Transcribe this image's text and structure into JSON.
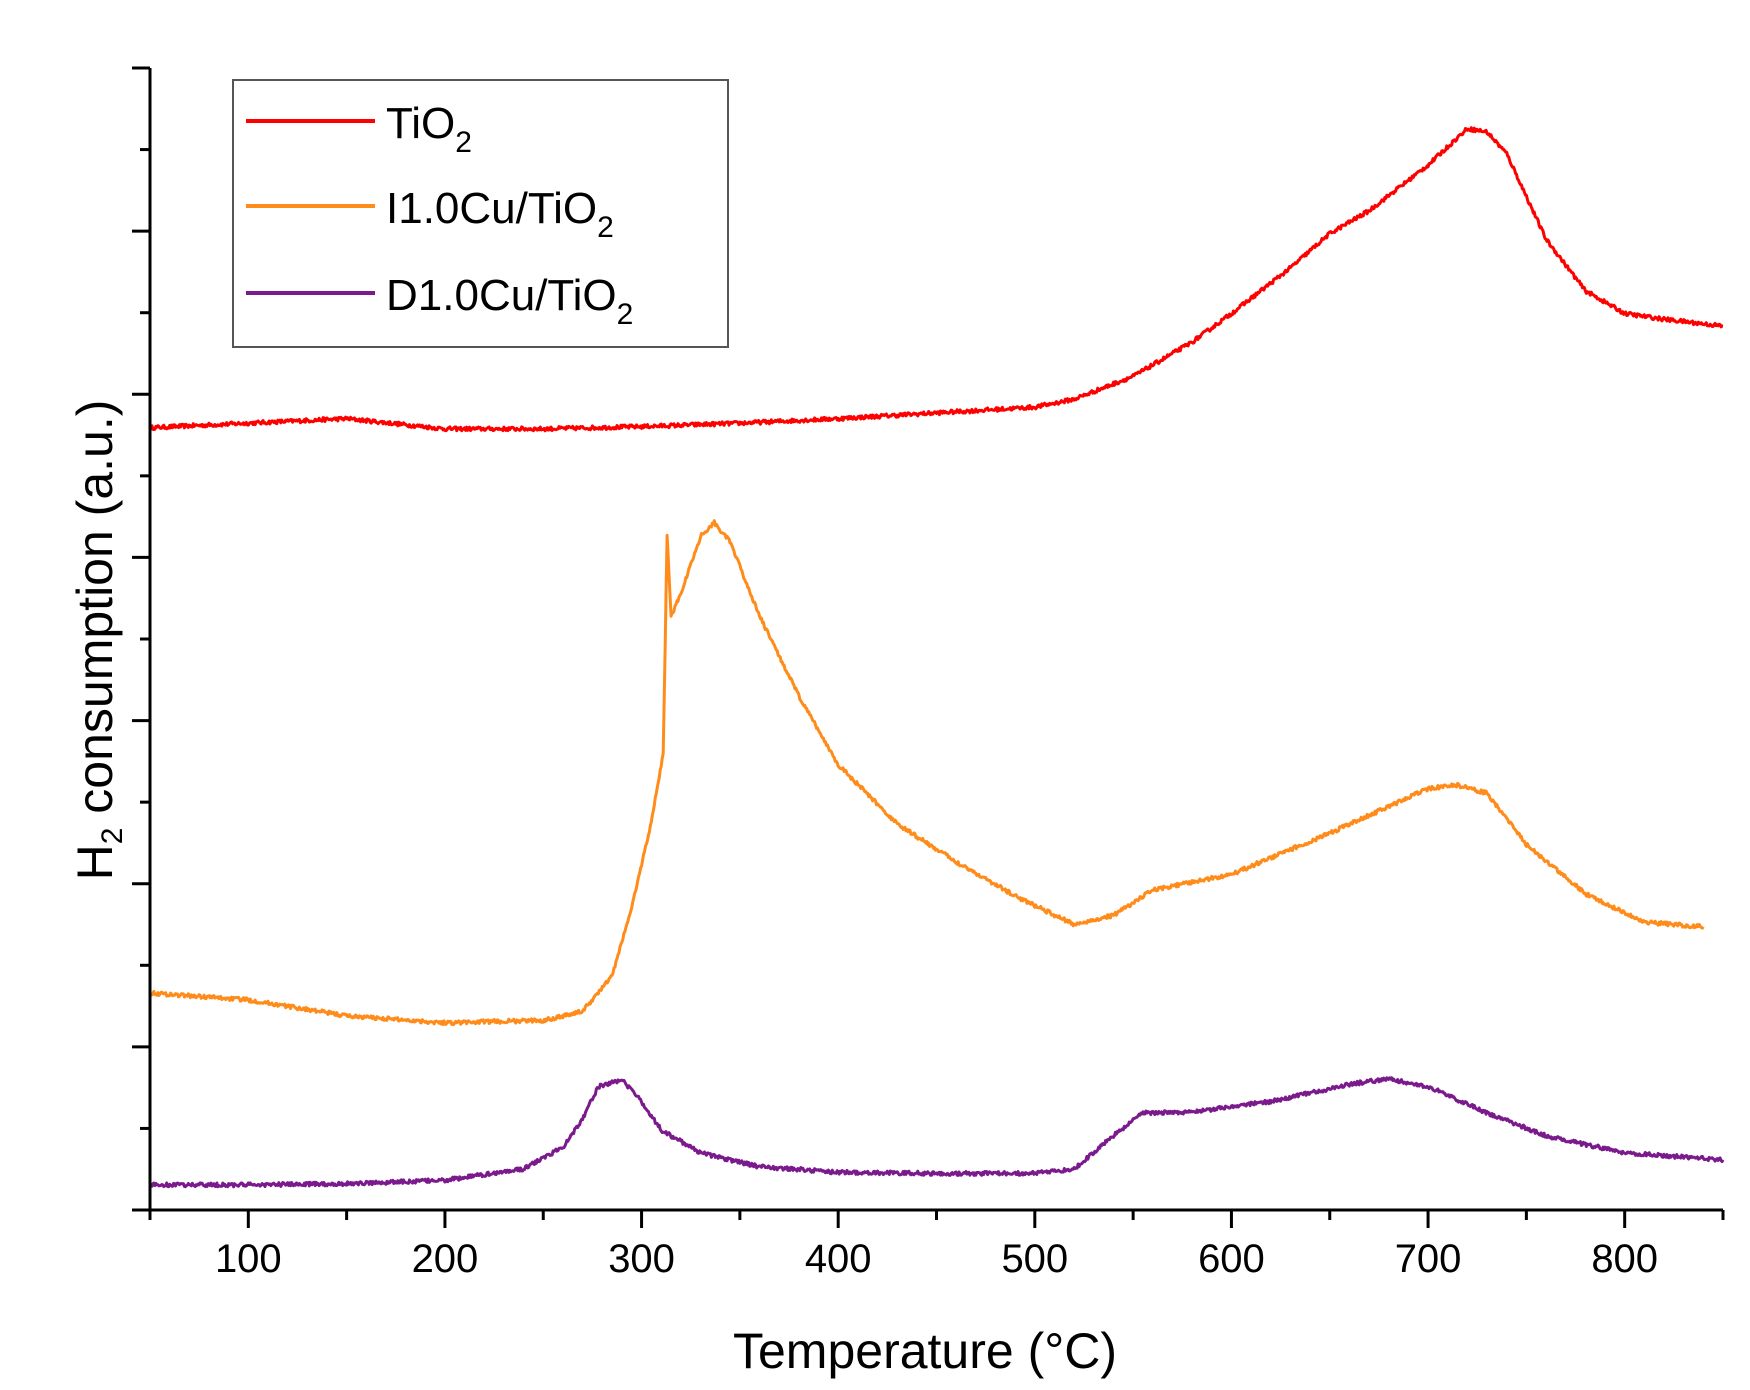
{
  "chart_data": {
    "type": "line",
    "title": "",
    "xlabel": "Temperature (°C)",
    "ylabel_main": "H",
    "ylabel_sub": "2",
    "ylabel_rest": " consumption (a.u.)",
    "xlim": [
      50,
      850
    ],
    "ylim": [
      0,
      100
    ],
    "x_ticks": [
      100,
      200,
      300,
      400,
      500,
      600,
      700,
      800
    ],
    "x_tick_labels": [
      "100",
      "200",
      "300",
      "400",
      "500",
      "600",
      "700",
      "800"
    ],
    "y_tick_labels_shown": false,
    "grid": false,
    "legend_position": "top-left",
    "series": [
      {
        "name": "TiO2",
        "label_main": "TiO",
        "label_sub": "2",
        "color": "#ff0000",
        "x": [
          50,
          100,
          150,
          200,
          250,
          300,
          350,
          400,
          450,
          500,
          520,
          550,
          580,
          600,
          630,
          650,
          670,
          700,
          720,
          730,
          740,
          760,
          780,
          800,
          820,
          850
        ],
        "y": [
          68.5,
          68.9,
          69.3,
          68.4,
          68.4,
          68.6,
          68.9,
          69.3,
          69.8,
          70.3,
          71.0,
          73.0,
          76.0,
          78.5,
          82.5,
          85.5,
          87.5,
          91.5,
          94.7,
          94.4,
          92.5,
          85.0,
          80.5,
          78.5,
          78.0,
          77.4
        ]
      },
      {
        "name": "I1.0Cu/TiO2",
        "label_main": "I1.0Cu/TiO",
        "label_sub": "2",
        "color": "#ff8c1a",
        "x": [
          50,
          100,
          150,
          200,
          250,
          270,
          285,
          295,
          305,
          311,
          313,
          315,
          320,
          330,
          337,
          345,
          360,
          380,
          400,
          430,
          460,
          490,
          520,
          540,
          560,
          600,
          650,
          700,
          715,
          730,
          750,
          780,
          810,
          840
        ],
        "y": [
          19.0,
          18.4,
          17.0,
          16.4,
          16.6,
          17.4,
          20.5,
          26.5,
          34.0,
          40.0,
          59.0,
          52.0,
          54.0,
          59.0,
          60.2,
          58.5,
          52.0,
          45.0,
          39.0,
          33.8,
          30.5,
          27.5,
          25.0,
          25.8,
          28.0,
          29.4,
          33.0,
          36.9,
          37.2,
          36.5,
          32.0,
          27.7,
          25.2,
          24.8
        ]
      },
      {
        "name": "D1.0Cu/TiO2",
        "label_main": "D1.0Cu/TiO",
        "label_sub": "2",
        "color": "#7a1a8c",
        "x": [
          50,
          100,
          150,
          200,
          240,
          260,
          270,
          278,
          290,
          300,
          310,
          330,
          360,
          400,
          450,
          500,
          520,
          540,
          555,
          580,
          620,
          660,
          680,
          700,
          730,
          760,
          800,
          850
        ],
        "y": [
          2.2,
          2.2,
          2.3,
          2.6,
          3.6,
          5.5,
          8.0,
          10.8,
          11.4,
          9.5,
          7.0,
          5.0,
          3.8,
          3.3,
          3.2,
          3.2,
          3.6,
          6.5,
          8.5,
          8.6,
          9.5,
          11.0,
          11.5,
          10.8,
          8.5,
          6.5,
          5.0,
          4.4
        ]
      }
    ]
  }
}
